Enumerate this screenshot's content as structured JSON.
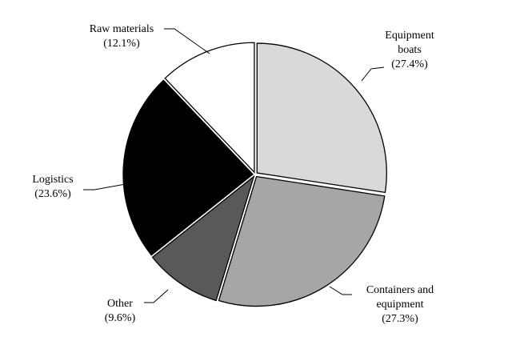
{
  "chart_data": {
    "type": "pie",
    "slices": [
      {
        "label_lines": [
          "Equipment",
          "boats"
        ],
        "value_label": "(27.4%)",
        "value": 27.4,
        "color": "#d9d9d9"
      },
      {
        "label_lines": [
          "Containers and",
          "equipment"
        ],
        "value_label": "(27.3%)",
        "value": 27.3,
        "color": "#a6a6a6"
      },
      {
        "label_lines": [
          "Other"
        ],
        "value_label": "(9.6%)",
        "value": 9.6,
        "color": "#595959"
      },
      {
        "label_lines": [
          "Logistics"
        ],
        "value_label": "(23.6%)",
        "value": 23.6,
        "color": "#000000"
      },
      {
        "label_lines": [
          "Raw materials"
        ],
        "value_label": "(12.1%)",
        "value": 12.1,
        "color": "#ffffff"
      }
    ],
    "start_angle_deg": 0,
    "direction": "clockwise",
    "legend": "none"
  }
}
